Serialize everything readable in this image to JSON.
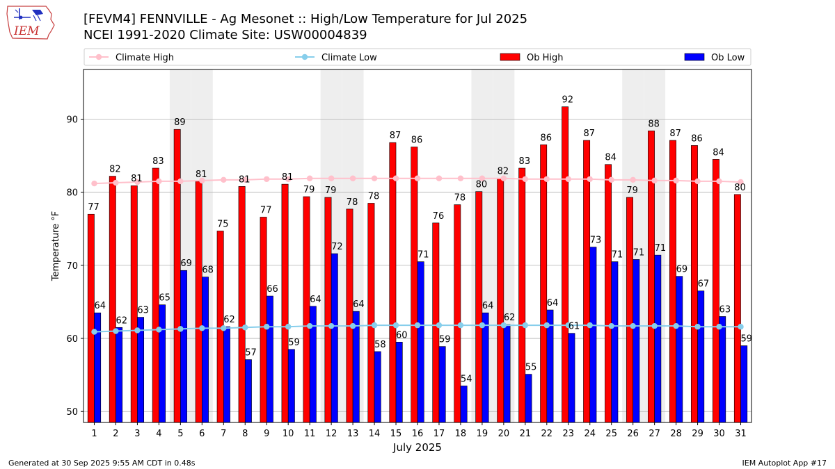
{
  "header": {
    "title_line1": "[FEVM4] FENNVILLE - Ag Mesonet :: High/Low Temperature for Jul 2025",
    "title_line2": "NCEI 1991-2020 Climate Site: USW00004839",
    "logo_text": "IEM"
  },
  "footer": {
    "generated": "Generated at 30 Sep 2025 9:55 AM CDT in 0.48s",
    "app": "IEM Autoplot App #17"
  },
  "colors": {
    "ob_high": "#ff0000",
    "ob_low": "#0000ff",
    "climate_high": "#ffc0cb",
    "climate_low": "#87ceeb",
    "weekend_shade": "#eeeeee",
    "grid": "#b0b0b0"
  },
  "chart_data": {
    "type": "bar",
    "xlabel": "July 2025",
    "ylabel": "Temperature °F",
    "ylim": [
      48.5,
      96.8
    ],
    "yticks": [
      50,
      60,
      70,
      80,
      90
    ],
    "grid": "horizontal",
    "legend_position": "top",
    "legend": [
      "Climate High",
      "Climate Low",
      "Ob High",
      "Ob Low"
    ],
    "shaded_days": [
      5,
      6,
      12,
      13,
      19,
      20,
      26,
      27
    ],
    "categories": [
      "1",
      "2",
      "3",
      "4",
      "5",
      "6",
      "7",
      "8",
      "9",
      "10",
      "11",
      "12",
      "13",
      "14",
      "15",
      "16",
      "17",
      "18",
      "19",
      "20",
      "21",
      "22",
      "23",
      "24",
      "25",
      "26",
      "27",
      "28",
      "29",
      "30",
      "31"
    ],
    "series": [
      {
        "name": "Ob High",
        "kind": "bar",
        "values": [
          77.0,
          82.2,
          80.9,
          83.3,
          88.6,
          81.5,
          74.7,
          80.8,
          76.6,
          81.1,
          79.4,
          79.3,
          77.7,
          78.5,
          86.8,
          86.2,
          75.8,
          78.3,
          80.1,
          81.9,
          83.3,
          86.5,
          91.7,
          87.1,
          83.8,
          79.3,
          88.4,
          87.1,
          86.4,
          84.5,
          79.7
        ],
        "labels": [
          "77",
          "82",
          "81",
          "83",
          "89",
          "81",
          "75",
          "81",
          "77",
          "81",
          "79",
          "79",
          "78",
          "78",
          "87",
          "86",
          "76",
          "78",
          "80",
          "82",
          "83",
          "86",
          "92",
          "87",
          "84",
          "79",
          "88",
          "87",
          "86",
          "84",
          "80"
        ]
      },
      {
        "name": "Ob Low",
        "kind": "bar",
        "values": [
          63.5,
          61.5,
          62.9,
          64.6,
          69.3,
          68.4,
          61.6,
          57.1,
          65.8,
          58.5,
          64.4,
          71.6,
          63.7,
          58.2,
          59.5,
          70.5,
          58.9,
          53.5,
          63.5,
          61.9,
          55.1,
          63.9,
          60.7,
          72.5,
          70.5,
          70.8,
          71.4,
          68.5,
          66.5,
          63.0,
          59.0
        ],
        "labels": [
          "64",
          "62",
          "63",
          "65",
          "69",
          "68",
          "62",
          "57",
          "66",
          "59",
          "64",
          "72",
          "64",
          "58",
          "60",
          "71",
          "59",
          "54",
          "64",
          "62",
          "55",
          "64",
          "61",
          "73",
          "71",
          "71",
          "71",
          "69",
          "67",
          "63",
          "59"
        ]
      },
      {
        "name": "Climate High",
        "kind": "line",
        "values": [
          81.2,
          81.3,
          81.4,
          81.5,
          81.5,
          81.6,
          81.7,
          81.7,
          81.8,
          81.8,
          81.9,
          81.9,
          81.9,
          81.9,
          81.9,
          81.9,
          81.9,
          81.9,
          81.9,
          81.9,
          81.8,
          81.8,
          81.8,
          81.8,
          81.7,
          81.7,
          81.6,
          81.6,
          81.5,
          81.5,
          81.4
        ]
      },
      {
        "name": "Climate Low",
        "kind": "line",
        "values": [
          60.9,
          61.0,
          61.1,
          61.2,
          61.3,
          61.4,
          61.4,
          61.5,
          61.6,
          61.6,
          61.7,
          61.7,
          61.7,
          61.8,
          61.8,
          61.8,
          61.8,
          61.8,
          61.8,
          61.8,
          61.8,
          61.8,
          61.8,
          61.8,
          61.7,
          61.7,
          61.7,
          61.7,
          61.6,
          61.6,
          61.6
        ]
      }
    ]
  }
}
